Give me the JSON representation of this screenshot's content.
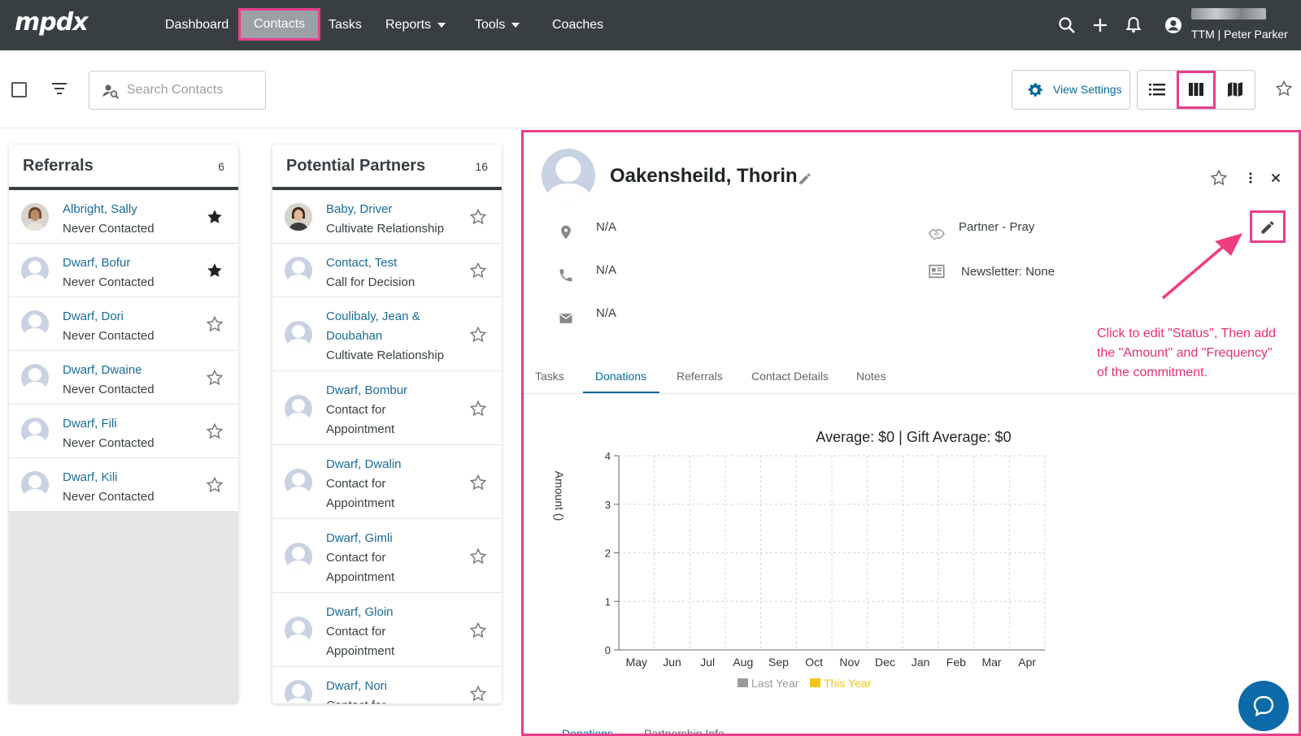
{
  "app": {
    "logo": "mpdx"
  },
  "nav": {
    "items": [
      {
        "label": "Dashboard"
      },
      {
        "label": "Contacts"
      },
      {
        "label": "Tasks"
      },
      {
        "label": "Reports"
      },
      {
        "label": "Tools"
      },
      {
        "label": "Coaches"
      }
    ],
    "account_name": "TTM | Peter Parker"
  },
  "toolbar": {
    "search_placeholder": "Search Contacts",
    "view_settings_label": "View Settings"
  },
  "columns": [
    {
      "title": "Referrals",
      "count": "6",
      "cards": [
        {
          "name": "Albright, Sally",
          "status": "Never Contacted",
          "starred": true,
          "photo": true
        },
        {
          "name": "Dwarf, Bofur",
          "status": "Never Contacted",
          "starred": true,
          "photo": false
        },
        {
          "name": "Dwarf, Dori",
          "status": "Never Contacted",
          "starred": false,
          "photo": false
        },
        {
          "name": "Dwarf, Dwaine",
          "status": "Never Contacted",
          "starred": false,
          "photo": false
        },
        {
          "name": "Dwarf, Fili",
          "status": "Never Contacted",
          "starred": false,
          "photo": false
        },
        {
          "name": "Dwarf, Kili",
          "status": "Never Contacted",
          "starred": false,
          "photo": false
        }
      ]
    },
    {
      "title": "Potential Partners",
      "count": "16",
      "cards": [
        {
          "name": "Baby, Driver",
          "status": "Cultivate Relationship",
          "starred": false,
          "photo": true
        },
        {
          "name": "Contact, Test",
          "status": "Call for Decision",
          "starred": false,
          "photo": false
        },
        {
          "name": "Coulibaly, Jean & Doubahan",
          "name_lines": [
            "Coulibaly, Jean &",
            "Doubahan"
          ],
          "status": "Cultivate Relationship",
          "starred": false,
          "photo": false
        },
        {
          "name": "Dwarf, Bombur",
          "status": "Contact for Appointment",
          "status_lines": [
            "Contact for",
            "Appointment"
          ],
          "starred": false,
          "photo": false
        },
        {
          "name": "Dwarf, Dwalin",
          "status": "Contact for Appointment",
          "status_lines": [
            "Contact for",
            "Appointment"
          ],
          "starred": false,
          "photo": false
        },
        {
          "name": "Dwarf, Gimli",
          "status": "Contact for Appointment",
          "status_lines": [
            "Contact for",
            "Appointment"
          ],
          "starred": false,
          "photo": false
        },
        {
          "name": "Dwarf, Gloin",
          "status": "Contact for Appointment",
          "status_lines": [
            "Contact for",
            "Appointment"
          ],
          "starred": false,
          "photo": false
        },
        {
          "name": "Dwarf, Nori",
          "status": "Contact for",
          "status_lines": [
            "Contact for"
          ],
          "starred": false,
          "photo": false
        }
      ]
    }
  ],
  "detail": {
    "name": "Oakensheild, Thorin",
    "address": "N/A",
    "phone": "N/A",
    "email": "N/A",
    "status": "Partner - Pray",
    "newsletter": "Newsletter: None",
    "annotation": "Click to edit \"Status\", Then add the \"Amount\" and \"Frequency\" of the commitment.",
    "tabs": [
      "Tasks",
      "Donations",
      "Referrals",
      "Contact Details",
      "Notes"
    ],
    "active_tab": "Donations",
    "subtabs": [
      "Donations",
      "Partnership Info"
    ]
  },
  "chart_data": {
    "type": "bar",
    "title": "Average: $0 | Gift Average: $0",
    "categories": [
      "May",
      "Jun",
      "Jul",
      "Aug",
      "Sep",
      "Oct",
      "Nov",
      "Dec",
      "Jan",
      "Feb",
      "Mar",
      "Apr"
    ],
    "series": [
      {
        "name": "Last Year",
        "values": [
          0,
          0,
          0,
          0,
          0,
          0,
          0,
          0,
          0,
          0,
          0,
          0
        ],
        "color": "#9b9b9b"
      },
      {
        "name": "This Year",
        "values": [
          0,
          0,
          0,
          0,
          0,
          0,
          0,
          0,
          0,
          0,
          0,
          0
        ],
        "color": "#f5c518"
      }
    ],
    "ylabel": "Amount ()",
    "xlabel": "",
    "ylim": [
      0,
      4
    ],
    "yticks": [
      0,
      1,
      2,
      3,
      4
    ],
    "grid": true,
    "legend": "bottom"
  },
  "colors": {
    "nav_bg": "#383f43",
    "link": "#1a6c98",
    "accent": "#05699b",
    "highlight": "#e83e8c"
  }
}
